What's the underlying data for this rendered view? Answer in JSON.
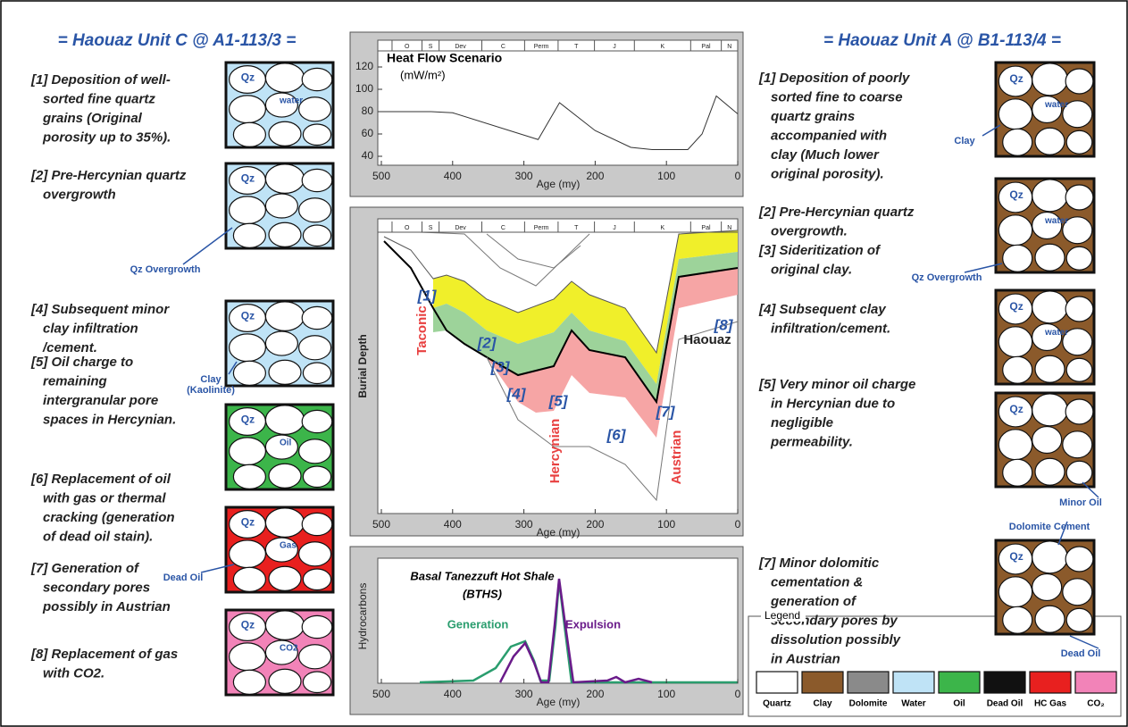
{
  "left": {
    "title": "= Haouaz Unit C @ A1-113/3 =",
    "items": [
      {
        "lines": [
          "[1]  Deposition of well-",
          "sorted fine quartz",
          "grains (Original",
          "porosity up to 35%)."
        ]
      },
      {
        "lines": [
          "[2]  Pre-Hercynian quartz",
          "overgrowth"
        ]
      },
      {
        "lines": [
          "[4]  Subsequent minor",
          "clay infiltration",
          "/cement."
        ]
      },
      {
        "lines": [
          "[5]  Oil charge to",
          "remaining",
          "intergranular pore",
          "spaces in Hercynian."
        ]
      },
      {
        "lines": [
          "[6]  Replacement of oil",
          "with gas or thermal",
          "cracking (generation",
          "of dead oil stain)."
        ]
      },
      {
        "lines": [
          "[7]  Generation of",
          "secondary pores",
          "possibly in Austrian"
        ]
      },
      {
        "lines": [
          "[8]  Replacement of gas",
          "with CO2."
        ]
      }
    ],
    "boxes": [
      {
        "fill": "#bfe3f6",
        "labels": [
          "Qz",
          "water"
        ]
      },
      {
        "fill": "#bfe3f6",
        "labels": [
          "Qz"
        ]
      },
      {
        "fill": "#bfe3f6",
        "labels": [
          "Qz"
        ]
      },
      {
        "fill": "#3cb54a",
        "labels": [
          "Qz",
          "Oil"
        ]
      },
      {
        "fill": "#e8201f",
        "labels": [
          "Qz",
          "Gas"
        ]
      },
      {
        "fill": "#f283b8",
        "labels": [
          "Qz",
          "CO2"
        ]
      }
    ],
    "callouts": [
      "Qz Overgrowth",
      "Clay",
      "(Kaolinite)",
      "Dead Oil"
    ]
  },
  "right": {
    "title": "= Haouaz Unit A @ B1-113/4 =",
    "items": [
      {
        "lines": [
          "[1]  Deposition of poorly",
          "sorted fine to coarse",
          "quartz grains",
          "accompanied with",
          "clay (Much lower",
          "original porosity)."
        ]
      },
      {
        "lines": [
          "[2]  Pre-Hercynian quartz",
          "overgrowth."
        ]
      },
      {
        "lines": [
          "[3]  Sideritization of",
          "original clay."
        ]
      },
      {
        "lines": [
          "[4]  Subsequent clay",
          "infiltration/cement."
        ]
      },
      {
        "lines": [
          "[5]  Very minor oil charge",
          "in Hercynian due to",
          "negligible",
          "permeability."
        ]
      },
      {
        "lines": [
          "[7]  Minor dolomitic",
          "cementation &",
          "generation of",
          "secondary pores by",
          "dissolution possibly",
          "in Austrian"
        ]
      }
    ],
    "boxes": [
      {
        "fill": "#8b5a2b",
        "labels": [
          "Qz",
          "water"
        ]
      },
      {
        "fill": "#8b5a2b",
        "labels": [
          "Qz",
          "water"
        ]
      },
      {
        "fill": "#8b5a2b",
        "labels": [
          "Qz",
          "water"
        ]
      },
      {
        "fill": "#8b5a2b",
        "labels": [
          "Qz"
        ]
      },
      {
        "fill": "#8b5a2b",
        "labels": [
          "Qz"
        ]
      }
    ],
    "callouts": [
      "Clay",
      "Qz Overgrowth",
      "Minor Oil",
      "Dolomite Cement",
      "Dead Oil"
    ]
  },
  "heat_flow": {
    "title": "Heat Flow Scenario",
    "unit": "(mW/m²)",
    "xlabel": "Age (my)",
    "x": [
      505,
      430,
      400,
      280,
      250,
      200,
      150,
      120,
      70,
      50,
      30,
      0
    ],
    "values": [
      80,
      80,
      79,
      55,
      88,
      63,
      48,
      46,
      46,
      60,
      94,
      78
    ],
    "xlim": [
      505,
      0
    ],
    "xticks": [
      500,
      400,
      300,
      200,
      100,
      0
    ],
    "ylim": [
      32,
      144
    ],
    "yticks": [
      40,
      60,
      80,
      100,
      120
    ],
    "color": "#333333"
  },
  "periods": [
    {
      "name": "O",
      "from": 485,
      "to": 443
    },
    {
      "name": "S",
      "from": 443,
      "to": 419
    },
    {
      "name": "Dev",
      "from": 419,
      "to": 359
    },
    {
      "name": "C",
      "from": 359,
      "to": 299
    },
    {
      "name": "Perm",
      "from": 299,
      "to": 252
    },
    {
      "name": "T",
      "from": 252,
      "to": 201
    },
    {
      "name": "J",
      "from": 201,
      "to": 145
    },
    {
      "name": "K",
      "from": 145,
      "to": 66
    },
    {
      "name": "Pal",
      "from": 66,
      "to": 23
    },
    {
      "name": "N",
      "from": 23,
      "to": 0
    }
  ],
  "burial": {
    "ylabel": "Burial Depth",
    "xlabel": "Age (my)",
    "xlim": [
      505,
      0
    ],
    "xticks": [
      500,
      400,
      300,
      200,
      100,
      0
    ],
    "markers": [
      "[1]",
      "[2]",
      "[3]",
      "[4]",
      "[5]",
      "[6]",
      "[7]",
      "[8]"
    ],
    "unit_label": "Haouaz",
    "events": [
      "Taconic",
      "Hercynian",
      "Austrian"
    ]
  },
  "hydrocarbons": {
    "ylabel": "Hydrocarbons",
    "title": "Basal Tanezzuft Hot Shale",
    "subtitle": "(BTHS)",
    "xlabel": "Age (my)",
    "xlim": [
      505,
      0
    ],
    "xticks": [
      500,
      400,
      300,
      200,
      100,
      0
    ],
    "series": [
      "Generation",
      "Expulsion"
    ]
  },
  "legend": {
    "title": "Legend",
    "items": [
      {
        "label": "Quartz",
        "color": "#ffffff"
      },
      {
        "label": "Clay",
        "color": "#8b5a2b"
      },
      {
        "label": "Dolomite",
        "color": "#8a8a8a"
      },
      {
        "label": "Water",
        "color": "#bfe3f6"
      },
      {
        "label": "Oil",
        "color": "#3cb54a"
      },
      {
        "label": "Dead Oil",
        "color": "#111111"
      },
      {
        "label": "HC Gas",
        "color": "#e8201f"
      },
      {
        "label": "CO₂",
        "color": "#f283b8"
      }
    ]
  }
}
